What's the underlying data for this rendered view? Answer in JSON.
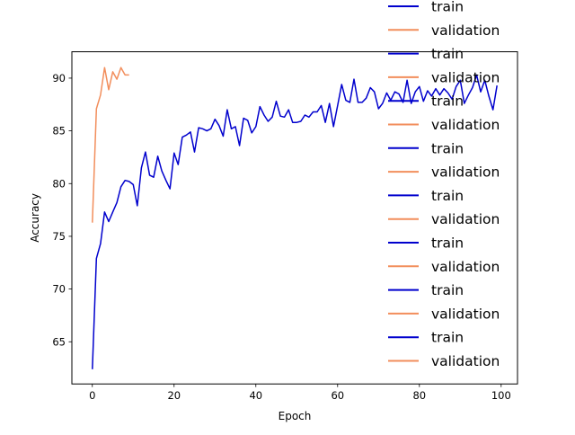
{
  "chart_data": {
    "type": "line",
    "title": "",
    "xlabel": "Epoch",
    "ylabel": "Accuracy",
    "xlim": [
      -5,
      104
    ],
    "ylim": [
      61,
      92.5
    ],
    "xticks": [
      0,
      20,
      40,
      60,
      80,
      100
    ],
    "yticks": [
      65,
      70,
      75,
      80,
      85,
      90
    ],
    "grid": false,
    "legend_position": "upper right",
    "legend_entries": [
      "train",
      "validation",
      "train",
      "validation",
      "train",
      "validation",
      "train",
      "validation",
      "train",
      "validation",
      "train",
      "validation",
      "train",
      "validation",
      "train",
      "validation"
    ],
    "series": [
      {
        "name": "train",
        "color": "#0000cd",
        "x": [
          0,
          1,
          2,
          3,
          4,
          5,
          6,
          7,
          8,
          9,
          10,
          11,
          12,
          13,
          14,
          15,
          16,
          17,
          18,
          19,
          20,
          21,
          22,
          23,
          24,
          25,
          26,
          27,
          28,
          29,
          30,
          31,
          32,
          33,
          34,
          35,
          36,
          37,
          38,
          39,
          40,
          41,
          42,
          43,
          44,
          45,
          46,
          47,
          48,
          49,
          50,
          51,
          52,
          53,
          54,
          55,
          56,
          57,
          58,
          59,
          60,
          61,
          62,
          63,
          64,
          65,
          66,
          67,
          68,
          69,
          70,
          71,
          72,
          73,
          74,
          75,
          76,
          77,
          78,
          79,
          80,
          81,
          82,
          83,
          84,
          85,
          86,
          87,
          88,
          89,
          90,
          91,
          92,
          93,
          94,
          95,
          96,
          97,
          98,
          99
        ],
        "values": [
          62.4,
          72.9,
          74.3,
          77.3,
          76.4,
          77.3,
          78.2,
          79.7,
          80.3,
          80.2,
          79.9,
          77.9,
          81.5,
          83.0,
          80.8,
          80.6,
          82.6,
          81.2,
          80.3,
          79.5,
          82.9,
          81.8,
          84.4,
          84.6,
          84.9,
          83.0,
          85.3,
          85.2,
          85.0,
          85.2,
          86.1,
          85.5,
          84.5,
          87.0,
          85.2,
          85.4,
          83.6,
          86.2,
          86.0,
          84.8,
          85.4,
          87.3,
          86.5,
          85.9,
          86.3,
          87.8,
          86.4,
          86.3,
          87.0,
          85.8,
          85.8,
          85.9,
          86.5,
          86.3,
          86.8,
          86.8,
          87.4,
          85.8,
          87.6,
          85.4,
          87.4,
          89.4,
          87.9,
          87.7,
          89.9,
          87.7,
          87.7,
          88.1,
          89.1,
          88.7,
          87.1,
          87.6,
          88.6,
          87.9,
          88.7,
          88.5,
          87.7,
          89.8,
          87.6,
          88.7,
          89.2,
          87.8,
          88.8,
          88.3,
          89.0,
          88.4,
          89.0,
          88.6,
          88.0,
          89.2,
          89.8,
          87.6,
          88.4,
          89.1,
          90.3,
          88.7,
          89.8,
          88.3,
          87.0,
          89.3
        ]
      },
      {
        "name": "validation",
        "color": "#f28e5c",
        "x": [
          0,
          1,
          2,
          3,
          4,
          5,
          6,
          7,
          8,
          9
        ],
        "values": [
          76.3,
          87.1,
          88.4,
          91.0,
          88.9,
          90.6,
          89.9,
          91.0,
          90.3,
          90.3
        ]
      }
    ]
  }
}
